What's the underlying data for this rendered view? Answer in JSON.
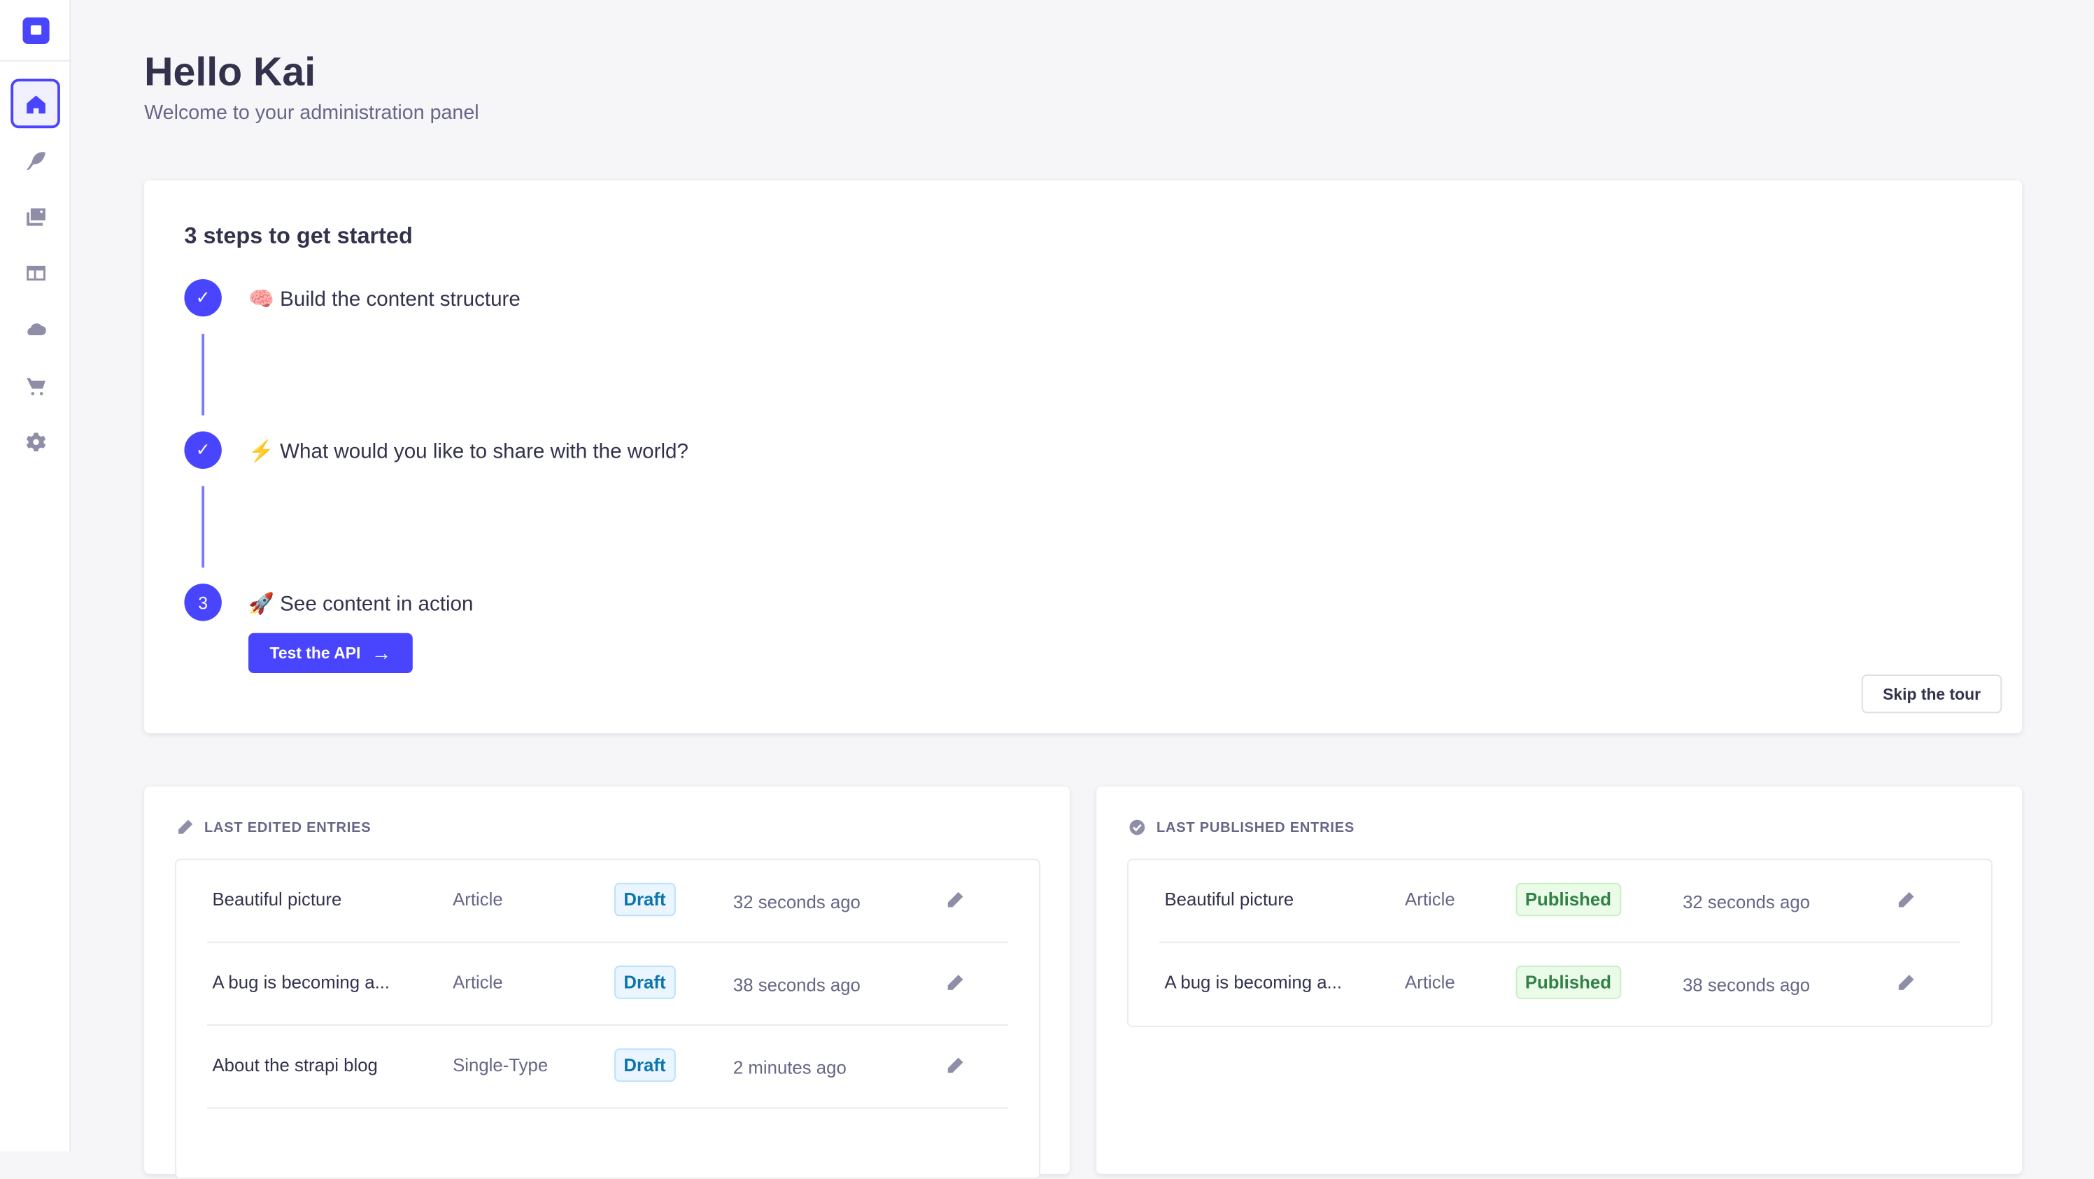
{
  "sidebar": {
    "logo": "strapi-logo",
    "items": [
      {
        "icon": "home-icon",
        "active": true
      },
      {
        "icon": "feather-icon"
      },
      {
        "icon": "media-library-icon"
      },
      {
        "icon": "layout-icon"
      },
      {
        "icon": "cloud-icon"
      },
      {
        "icon": "cart-icon"
      },
      {
        "icon": "gear-icon"
      }
    ]
  },
  "header": {
    "title": "Hello Kai",
    "subtitle": "Welcome to your administration panel"
  },
  "guided_tour": {
    "title": "3 steps to get started",
    "steps": [
      {
        "status": "done",
        "emoji": "🧠",
        "label": "Build the content structure"
      },
      {
        "status": "done",
        "emoji": "⚡",
        "label": "What would you like to share with the world?"
      },
      {
        "status": "current",
        "number": "3",
        "emoji": "🚀",
        "label": "See content in action"
      }
    ],
    "cta_label": "Test the API",
    "skip_label": "Skip the tour"
  },
  "last_edited": {
    "heading": "LAST EDITED ENTRIES",
    "rows": [
      {
        "title": "Beautiful picture",
        "type": "Article",
        "status": "Draft",
        "time": "32 seconds ago"
      },
      {
        "title": "A bug is becoming a...",
        "type": "Article",
        "status": "Draft",
        "time": "38 seconds ago"
      },
      {
        "title": "About the strapi blog",
        "type": "Single-Type",
        "status": "Draft",
        "time": "2 minutes ago"
      }
    ]
  },
  "last_published": {
    "heading": "LAST PUBLISHED ENTRIES",
    "rows": [
      {
        "title": "Beautiful picture",
        "type": "Article",
        "status": "Published",
        "time": "32 seconds ago"
      },
      {
        "title": "A bug is becoming a...",
        "type": "Article",
        "status": "Published",
        "time": "38 seconds ago"
      }
    ]
  },
  "colors": {
    "primary": "#4945ff",
    "draft": "#0c75af",
    "published": "#328048",
    "background": "#f6f6f9"
  }
}
